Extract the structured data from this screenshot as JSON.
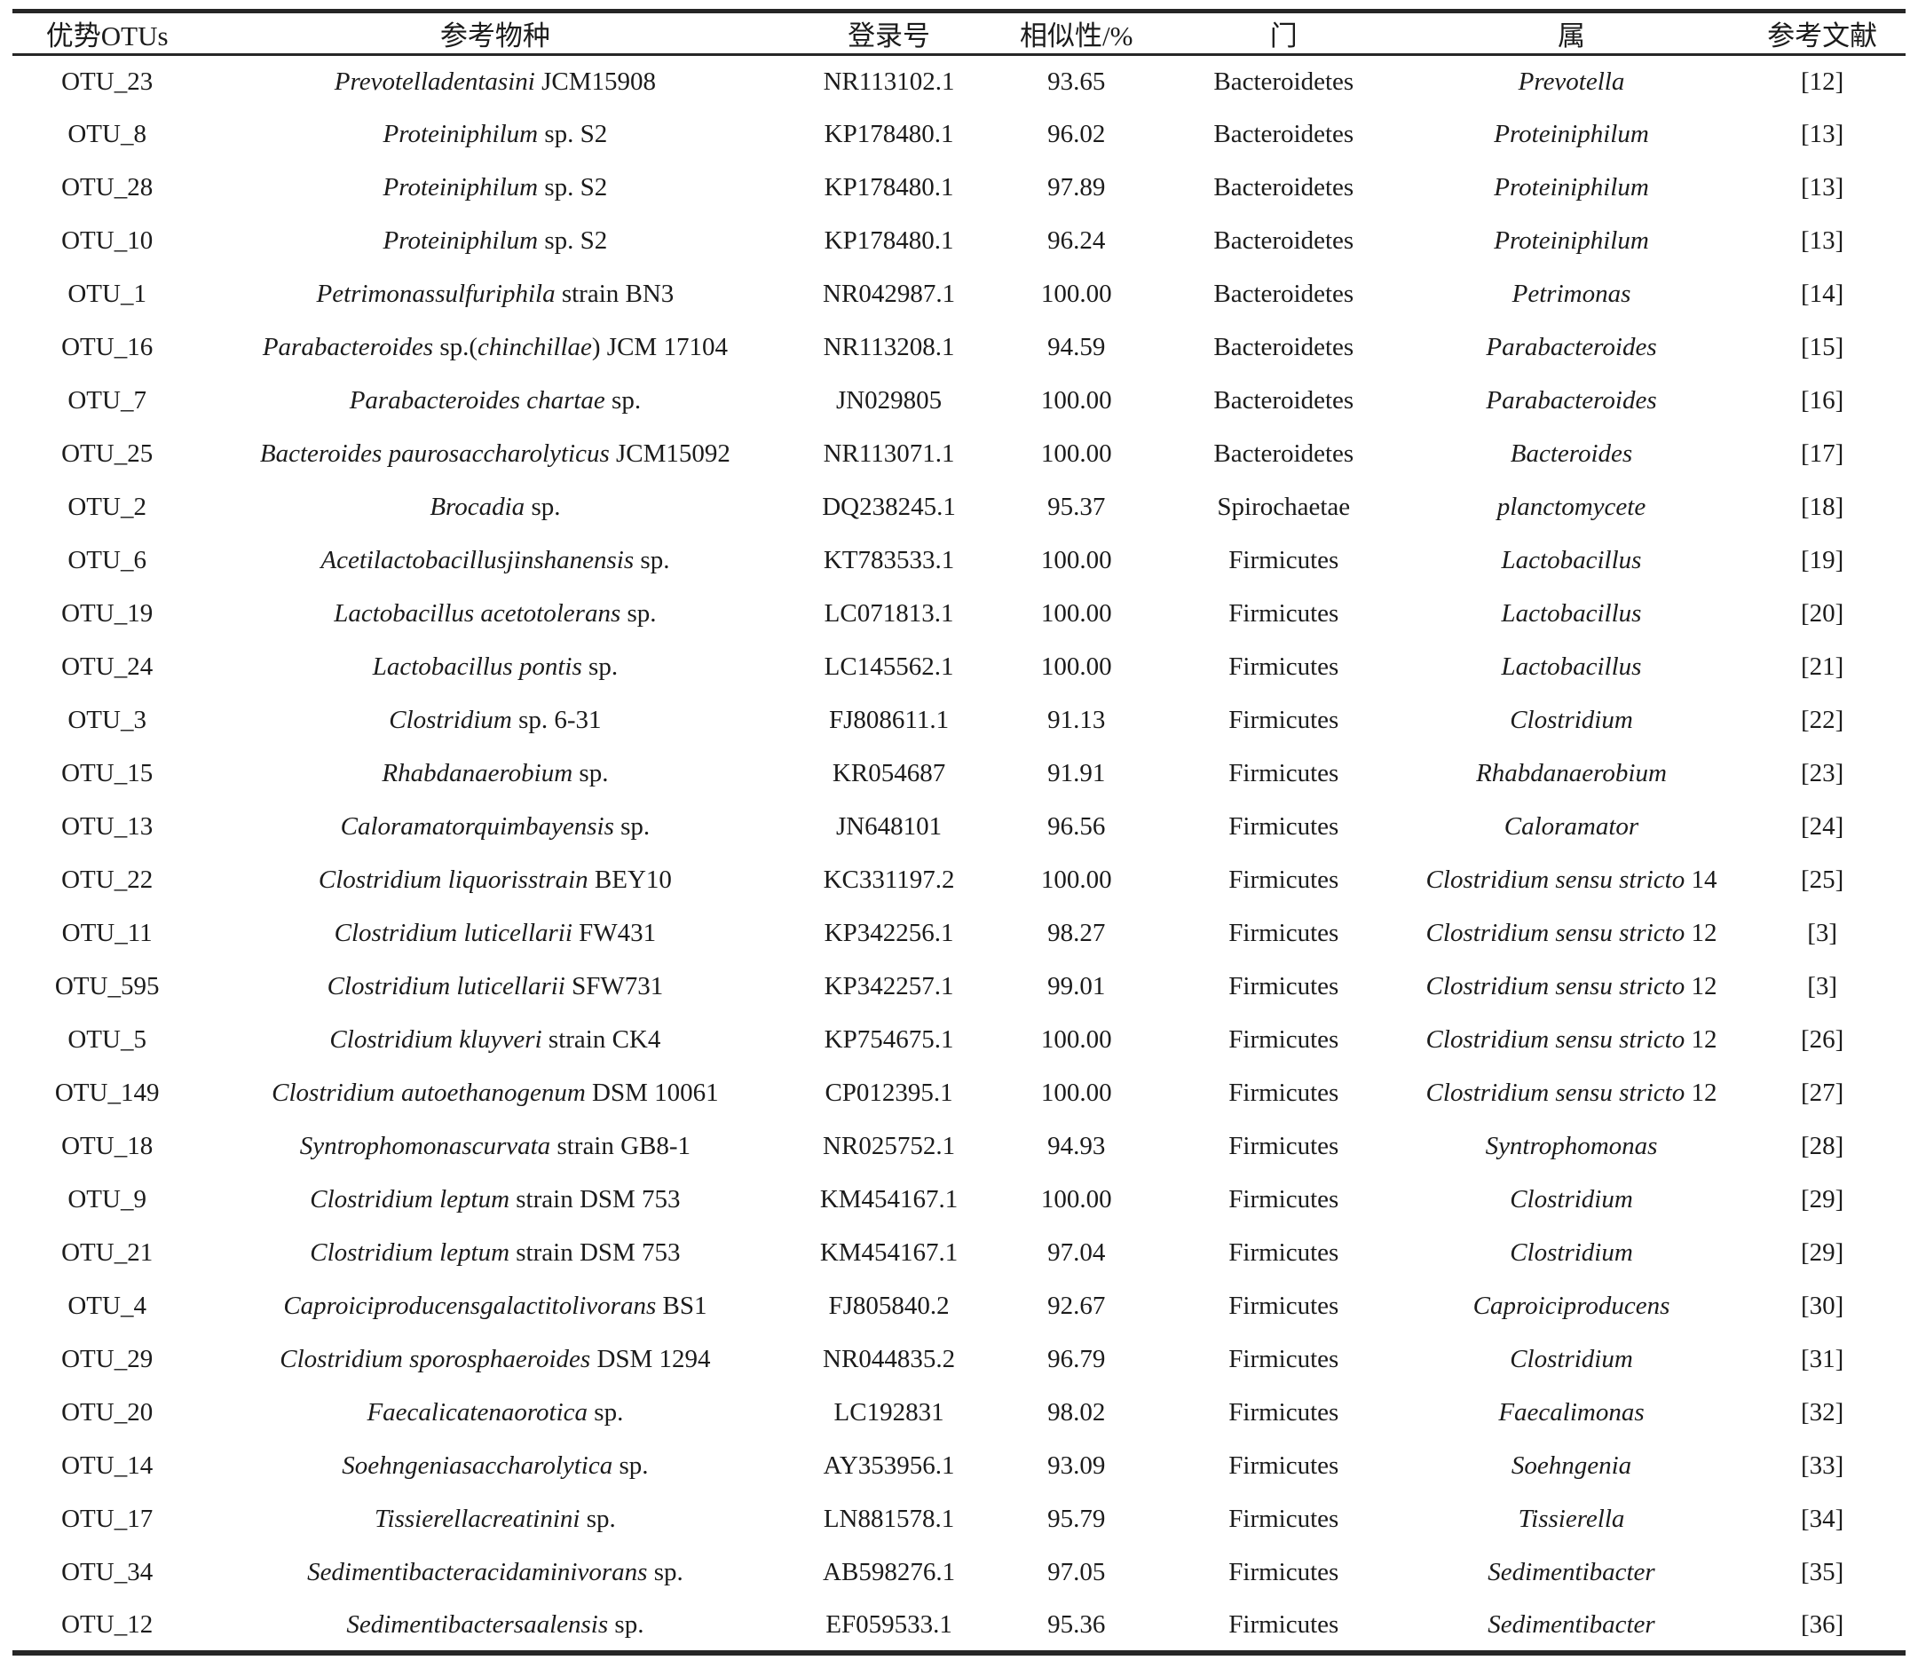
{
  "colors": {
    "background": "#ffffff",
    "text": "#1b1b1b",
    "rule": "#262626"
  },
  "table": {
    "headers": [
      "优势OTUs",
      "参考物种",
      "登录号",
      "相似性/%",
      "门",
      "属",
      "参考文献"
    ],
    "rows": [
      {
        "otu": "OTU_23",
        "species": [
          {
            "t": "Prevotelladentasini",
            "i": true
          },
          {
            "t": " JCM15908",
            "i": false
          }
        ],
        "accession": "NR113102.1",
        "similarity": "93.65",
        "phylum": "Bacteroidetes",
        "genus": [
          {
            "t": "Prevotella",
            "i": true
          }
        ],
        "ref": "[12]"
      },
      {
        "otu": "OTU_8",
        "species": [
          {
            "t": "Proteiniphilum",
            "i": true
          },
          {
            "t": " sp. S2",
            "i": false
          }
        ],
        "accession": "KP178480.1",
        "similarity": "96.02",
        "phylum": "Bacteroidetes",
        "genus": [
          {
            "t": "Proteiniphilum",
            "i": true
          }
        ],
        "ref": "[13]"
      },
      {
        "otu": "OTU_28",
        "species": [
          {
            "t": "Proteiniphilum",
            "i": true
          },
          {
            "t": " sp. S2",
            "i": false
          }
        ],
        "accession": "KP178480.1",
        "similarity": "97.89",
        "phylum": "Bacteroidetes",
        "genus": [
          {
            "t": "Proteiniphilum",
            "i": true
          }
        ],
        "ref": "[13]"
      },
      {
        "otu": "OTU_10",
        "species": [
          {
            "t": "Proteiniphilum",
            "i": true
          },
          {
            "t": " sp. S2",
            "i": false
          }
        ],
        "accession": "KP178480.1",
        "similarity": "96.24",
        "phylum": "Bacteroidetes",
        "genus": [
          {
            "t": "Proteiniphilum",
            "i": true
          }
        ],
        "ref": "[13]"
      },
      {
        "otu": "OTU_1",
        "species": [
          {
            "t": "Petrimonassulfuriphila",
            "i": true
          },
          {
            "t": " strain BN3",
            "i": false
          }
        ],
        "accession": "NR042987.1",
        "similarity": "100.00",
        "phylum": "Bacteroidetes",
        "genus": [
          {
            "t": "Petrimonas",
            "i": true
          }
        ],
        "ref": "[14]"
      },
      {
        "otu": "OTU_16",
        "species": [
          {
            "t": "Parabacteroides",
            "i": true
          },
          {
            "t": " sp.(",
            "i": false
          },
          {
            "t": "chinchillae",
            "i": true
          },
          {
            "t": ") JCM 17104",
            "i": false
          }
        ],
        "accession": "NR113208.1",
        "similarity": "94.59",
        "phylum": "Bacteroidetes",
        "genus": [
          {
            "t": "Parabacteroides",
            "i": true
          }
        ],
        "ref": "[15]"
      },
      {
        "otu": "OTU_7",
        "species": [
          {
            "t": "Parabacteroides chartae",
            "i": true
          },
          {
            "t": " sp.",
            "i": false
          }
        ],
        "accession": "JN029805",
        "similarity": "100.00",
        "phylum": "Bacteroidetes",
        "genus": [
          {
            "t": "Parabacteroides",
            "i": true
          }
        ],
        "ref": "[16]"
      },
      {
        "otu": "OTU_25",
        "species": [
          {
            "t": "Bacteroides paurosaccharolyticus",
            "i": true
          },
          {
            "t": " JCM15092",
            "i": false
          }
        ],
        "accession": "NR113071.1",
        "similarity": "100.00",
        "phylum": "Bacteroidetes",
        "genus": [
          {
            "t": "Bacteroides",
            "i": true
          }
        ],
        "ref": "[17]"
      },
      {
        "otu": "OTU_2",
        "species": [
          {
            "t": "Brocadia",
            "i": true
          },
          {
            "t": " sp.",
            "i": false
          }
        ],
        "accession": "DQ238245.1",
        "similarity": "95.37",
        "phylum": "Spirochaetae",
        "genus": [
          {
            "t": "planctomycete",
            "i": true
          }
        ],
        "ref": "[18]"
      },
      {
        "otu": "OTU_6",
        "species": [
          {
            "t": "Acetilactobacillusjinshanensis",
            "i": true
          },
          {
            "t": " sp.",
            "i": false
          }
        ],
        "accession": "KT783533.1",
        "similarity": "100.00",
        "phylum": "Firmicutes",
        "genus": [
          {
            "t": "Lactobacillus",
            "i": true
          }
        ],
        "ref": "[19]"
      },
      {
        "otu": "OTU_19",
        "species": [
          {
            "t": "Lactobacillus acetotolerans",
            "i": true
          },
          {
            "t": " sp.",
            "i": false
          }
        ],
        "accession": "LC071813.1",
        "similarity": "100.00",
        "phylum": "Firmicutes",
        "genus": [
          {
            "t": "Lactobacillus",
            "i": true
          }
        ],
        "ref": "[20]"
      },
      {
        "otu": "OTU_24",
        "species": [
          {
            "t": "Lactobacillus pontis",
            "i": true
          },
          {
            "t": " sp.",
            "i": false
          }
        ],
        "accession": "LC145562.1",
        "similarity": "100.00",
        "phylum": "Firmicutes",
        "genus": [
          {
            "t": "Lactobacillus",
            "i": true
          }
        ],
        "ref": "[21]"
      },
      {
        "otu": "OTU_3",
        "species": [
          {
            "t": "Clostridium",
            "i": true
          },
          {
            "t": " sp. 6-31",
            "i": false
          }
        ],
        "accession": "FJ808611.1",
        "similarity": "91.13",
        "phylum": "Firmicutes",
        "genus": [
          {
            "t": "Clostridium",
            "i": true
          }
        ],
        "ref": "[22]"
      },
      {
        "otu": "OTU_15",
        "species": [
          {
            "t": "Rhabdanaerobium",
            "i": true
          },
          {
            "t": " sp.",
            "i": false
          }
        ],
        "accession": "KR054687",
        "similarity": "91.91",
        "phylum": "Firmicutes",
        "genus": [
          {
            "t": "Rhabdanaerobium",
            "i": true
          }
        ],
        "ref": "[23]"
      },
      {
        "otu": "OTU_13",
        "species": [
          {
            "t": "Caloramatorquimbayensis",
            "i": true
          },
          {
            "t": " sp.",
            "i": false
          }
        ],
        "accession": "JN648101",
        "similarity": "96.56",
        "phylum": "Firmicutes",
        "genus": [
          {
            "t": "Caloramator",
            "i": true
          }
        ],
        "ref": "[24]"
      },
      {
        "otu": "OTU_22",
        "species": [
          {
            "t": "Clostridium liquorisstrain",
            "i": true
          },
          {
            "t": " BEY10",
            "i": false
          }
        ],
        "accession": "KC331197.2",
        "similarity": "100.00",
        "phylum": "Firmicutes",
        "genus": [
          {
            "t": "Clostridium sensu stricto",
            "i": true
          },
          {
            "t": " 14",
            "i": false
          }
        ],
        "ref": "[25]"
      },
      {
        "otu": "OTU_11",
        "species": [
          {
            "t": "Clostridium luticellarii",
            "i": true
          },
          {
            "t": " FW431",
            "i": false
          }
        ],
        "accession": "KP342256.1",
        "similarity": "98.27",
        "phylum": "Firmicutes",
        "genus": [
          {
            "t": "Clostridium sensu stricto",
            "i": true
          },
          {
            "t": " 12",
            "i": false
          }
        ],
        "ref": "[3]"
      },
      {
        "otu": "OTU_595",
        "species": [
          {
            "t": "Clostridium luticellarii",
            "i": true
          },
          {
            "t": " SFW731",
            "i": false
          }
        ],
        "accession": "KP342257.1",
        "similarity": "99.01",
        "phylum": "Firmicutes",
        "genus": [
          {
            "t": "Clostridium sensu stricto",
            "i": true
          },
          {
            "t": " 12",
            "i": false
          }
        ],
        "ref": "[3]"
      },
      {
        "otu": "OTU_5",
        "species": [
          {
            "t": "Clostridium kluyveri",
            "i": true
          },
          {
            "t": " strain CK4",
            "i": false
          }
        ],
        "accession": "KP754675.1",
        "similarity": "100.00",
        "phylum": "Firmicutes",
        "genus": [
          {
            "t": "Clostridium sensu stricto",
            "i": true
          },
          {
            "t": " 12",
            "i": false
          }
        ],
        "ref": "[26]"
      },
      {
        "otu": "OTU_149",
        "species": [
          {
            "t": "Clostridium autoethanogenum",
            "i": true
          },
          {
            "t": " DSM 10061",
            "i": false
          }
        ],
        "accession": "CP012395.1",
        "similarity": "100.00",
        "phylum": "Firmicutes",
        "genus": [
          {
            "t": "Clostridium sensu stricto",
            "i": true
          },
          {
            "t": " 12",
            "i": false
          }
        ],
        "ref": "[27]"
      },
      {
        "otu": "OTU_18",
        "species": [
          {
            "t": "Syntrophomonascurvata",
            "i": true
          },
          {
            "t": " strain GB8-1",
            "i": false
          }
        ],
        "accession": "NR025752.1",
        "similarity": "94.93",
        "phylum": "Firmicutes",
        "genus": [
          {
            "t": "Syntrophomonas",
            "i": true
          }
        ],
        "ref": "[28]"
      },
      {
        "otu": "OTU_9",
        "species": [
          {
            "t": "Clostridium leptum",
            "i": true
          },
          {
            "t": " strain DSM 753",
            "i": false
          }
        ],
        "accession": "KM454167.1",
        "similarity": "100.00",
        "phylum": "Firmicutes",
        "genus": [
          {
            "t": "Clostridium",
            "i": true
          }
        ],
        "ref": "[29]"
      },
      {
        "otu": "OTU_21",
        "species": [
          {
            "t": "Clostridium leptum",
            "i": true
          },
          {
            "t": " strain DSM 753",
            "i": false
          }
        ],
        "accession": "KM454167.1",
        "similarity": "97.04",
        "phylum": "Firmicutes",
        "genus": [
          {
            "t": "Clostridium",
            "i": true
          }
        ],
        "ref": "[29]"
      },
      {
        "otu": "OTU_4",
        "species": [
          {
            "t": "Caproiciproducensgalactitolivorans",
            "i": true
          },
          {
            "t": " BS1",
            "i": false
          }
        ],
        "accession": "FJ805840.2",
        "similarity": "92.67",
        "phylum": "Firmicutes",
        "genus": [
          {
            "t": "Caproiciproducens",
            "i": true
          }
        ],
        "ref": "[30]"
      },
      {
        "otu": "OTU_29",
        "species": [
          {
            "t": "Clostridium sporosphaeroides",
            "i": true
          },
          {
            "t": " DSM 1294",
            "i": false
          }
        ],
        "accession": "NR044835.2",
        "similarity": "96.79",
        "phylum": "Firmicutes",
        "genus": [
          {
            "t": "Clostridium",
            "i": true
          }
        ],
        "ref": "[31]"
      },
      {
        "otu": "OTU_20",
        "species": [
          {
            "t": "Faecalicatenaorotica",
            "i": true
          },
          {
            "t": " sp.",
            "i": false
          }
        ],
        "accession": "LC192831",
        "similarity": "98.02",
        "phylum": "Firmicutes",
        "genus": [
          {
            "t": "Faecalimonas",
            "i": true
          }
        ],
        "ref": "[32]"
      },
      {
        "otu": "OTU_14",
        "species": [
          {
            "t": "Soehngeniasaccharolytica",
            "i": true
          },
          {
            "t": " sp.",
            "i": false
          }
        ],
        "accession": "AY353956.1",
        "similarity": "93.09",
        "phylum": "Firmicutes",
        "genus": [
          {
            "t": "Soehngenia",
            "i": true
          }
        ],
        "ref": "[33]"
      },
      {
        "otu": "OTU_17",
        "species": [
          {
            "t": "Tissierellacreatinini",
            "i": true
          },
          {
            "t": " sp.",
            "i": false
          }
        ],
        "accession": "LN881578.1",
        "similarity": "95.79",
        "phylum": "Firmicutes",
        "genus": [
          {
            "t": "Tissierella",
            "i": true
          }
        ],
        "ref": "[34]"
      },
      {
        "otu": "OTU_34",
        "species": [
          {
            "t": "Sedimentibacteracidaminivorans",
            "i": true
          },
          {
            "t": " sp.",
            "i": false
          }
        ],
        "accession": "AB598276.1",
        "similarity": "97.05",
        "phylum": "Firmicutes",
        "genus": [
          {
            "t": "Sedimentibacter",
            "i": true
          }
        ],
        "ref": "[35]"
      },
      {
        "otu": "OTU_12",
        "species": [
          {
            "t": "Sedimentibactersaalensis",
            "i": true
          },
          {
            "t": " sp.",
            "i": false
          }
        ],
        "accession": "EF059533.1",
        "similarity": "95.36",
        "phylum": "Firmicutes",
        "genus": [
          {
            "t": "Sedimentibacter",
            "i": true
          }
        ],
        "ref": "[36]"
      }
    ]
  }
}
